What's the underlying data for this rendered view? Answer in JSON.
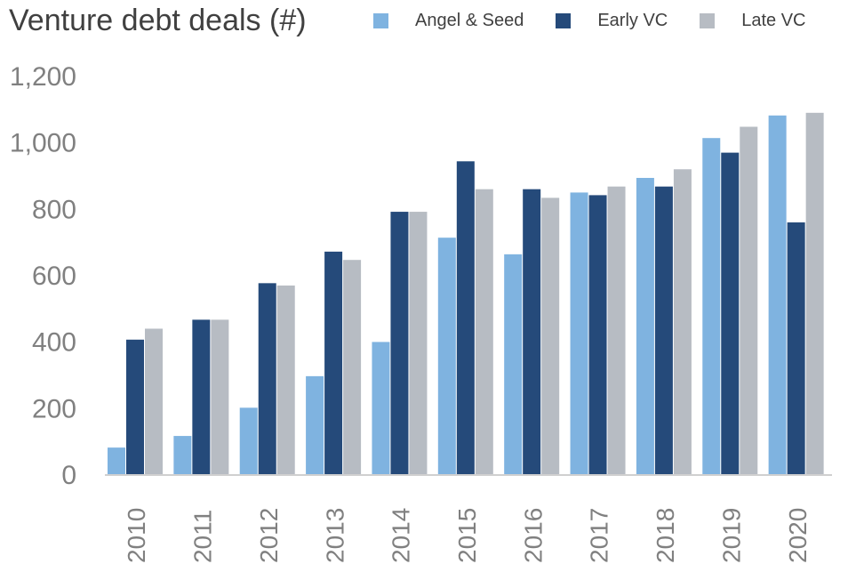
{
  "chart_data": {
    "type": "bar",
    "title": "Venture debt deals (#)",
    "categories": [
      "2010",
      "2011",
      "2012",
      "2013",
      "2014",
      "2015",
      "2016",
      "2017",
      "2018",
      "2019",
      "2020"
    ],
    "series": [
      {
        "name": "Angel & Seed",
        "color": "#7fb3e0",
        "values": [
          80,
          115,
          200,
          295,
          398,
          712,
          662,
          848,
          892,
          1012,
          1080
        ]
      },
      {
        "name": "Early VC",
        "color": "#254a7a",
        "values": [
          405,
          465,
          575,
          670,
          790,
          942,
          858,
          840,
          866,
          968,
          758
        ]
      },
      {
        "name": "Late VC",
        "color": "#b7bcc3",
        "values": [
          438,
          465,
          568,
          645,
          790,
          858,
          832,
          866,
          918,
          1046,
          1088
        ]
      }
    ],
    "ylim": [
      0,
      1200
    ],
    "yticks": [
      {
        "value": 0,
        "label": "0"
      },
      {
        "value": 200,
        "label": "200"
      },
      {
        "value": 400,
        "label": "400"
      },
      {
        "value": 600,
        "label": "600"
      },
      {
        "value": 800,
        "label": "800"
      },
      {
        "value": 1000,
        "label": "1,000"
      },
      {
        "value": 1200,
        "label": "1,200"
      }
    ],
    "xlabel": "",
    "ylabel": "",
    "grid": false,
    "legend_position": "top-right"
  }
}
